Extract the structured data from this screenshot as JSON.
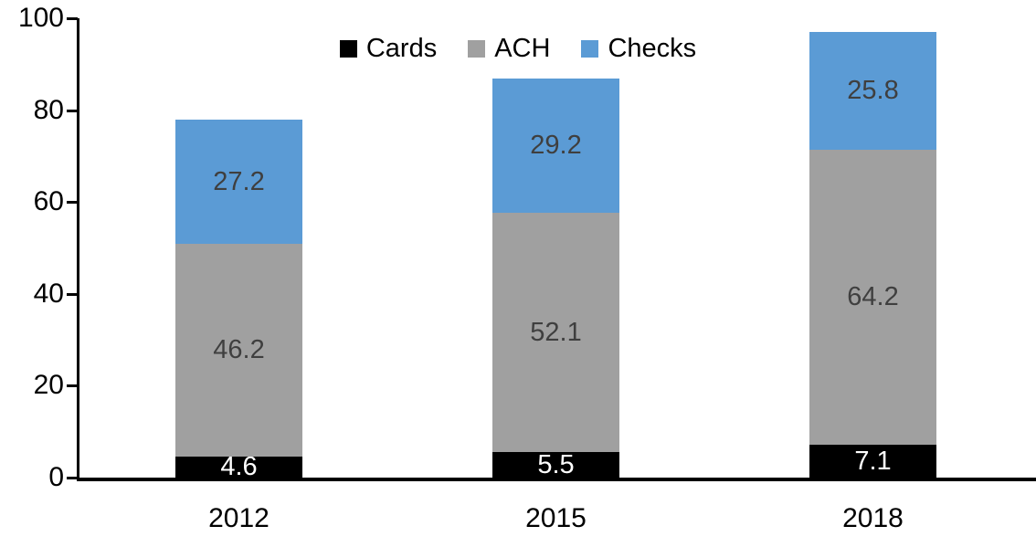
{
  "chart_data": {
    "type": "bar",
    "stacked": true,
    "title": "",
    "categories": [
      "2012",
      "2015",
      "2018"
    ],
    "series": [
      {
        "name": "Cards",
        "color": "#000000",
        "label_color": "#ffffff",
        "values": [
          4.6,
          5.5,
          7.1
        ]
      },
      {
        "name": "ACH",
        "color": "#a0a0a0",
        "label_color": "#3f3f3f",
        "values": [
          46.2,
          52.1,
          64.2
        ]
      },
      {
        "name": "Checks",
        "color": "#5b9bd5",
        "label_color": "#3f3f3f",
        "values": [
          27.2,
          29.2,
          25.8
        ]
      }
    ],
    "totals": [
      78.0,
      86.8,
      97.1
    ],
    "xlabel": "",
    "ylabel": "",
    "ylim": [
      0,
      100
    ],
    "yticks": [
      0,
      20,
      40,
      60,
      80,
      100
    ],
    "grid": "off",
    "legend_position": "top-center",
    "data_labels": "on",
    "axis_color": "#000000",
    "background_color": "#ffffff"
  }
}
